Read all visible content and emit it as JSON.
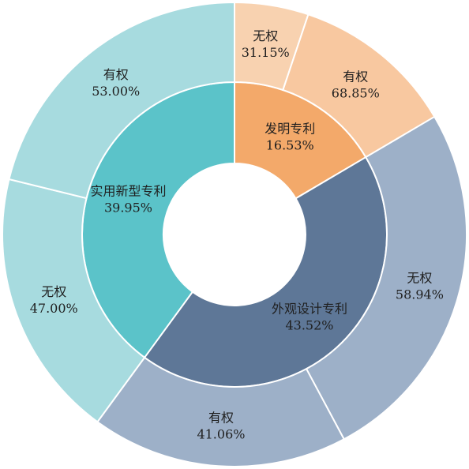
{
  "chart_data": {
    "type": "pie",
    "inner_ring": {
      "slices": [
        {
          "label": "发明专利",
          "value": 16.53,
          "value_label": "16.53%",
          "color": "#F3A96A"
        },
        {
          "label": "外观设计专利",
          "value": 43.52,
          "value_label": "43.52%",
          "color": "#5E7797"
        },
        {
          "label": "实用新型专利",
          "value": 39.95,
          "value_label": "39.95%",
          "color": "#5BC3C9"
        }
      ]
    },
    "outer_ring": {
      "slices": [
        {
          "parent": "发明专利",
          "label": "无权",
          "value": 31.15,
          "value_label": "31.15%",
          "color": "#F8D2B0"
        },
        {
          "parent": "发明专利",
          "label": "有权",
          "value": 68.85,
          "value_label": "68.85%",
          "color": "#F8C8A0"
        },
        {
          "parent": "外观设计专利",
          "label": "无权",
          "value": 58.94,
          "value_label": "58.94%",
          "color": "#9DB0C8"
        },
        {
          "parent": "外观设计专利",
          "label": "有权",
          "value": 41.06,
          "value_label": "41.06%",
          "color": "#9DB0C8"
        },
        {
          "parent": "实用新型专利",
          "label": "无权",
          "value": 47.0,
          "value_label": "47.00%",
          "color": "#A7DBDF"
        },
        {
          "parent": "实用新型专利",
          "label": "有权",
          "value": 53.0,
          "value_label": "53.00%",
          "color": "#A7DBDF"
        }
      ]
    }
  }
}
